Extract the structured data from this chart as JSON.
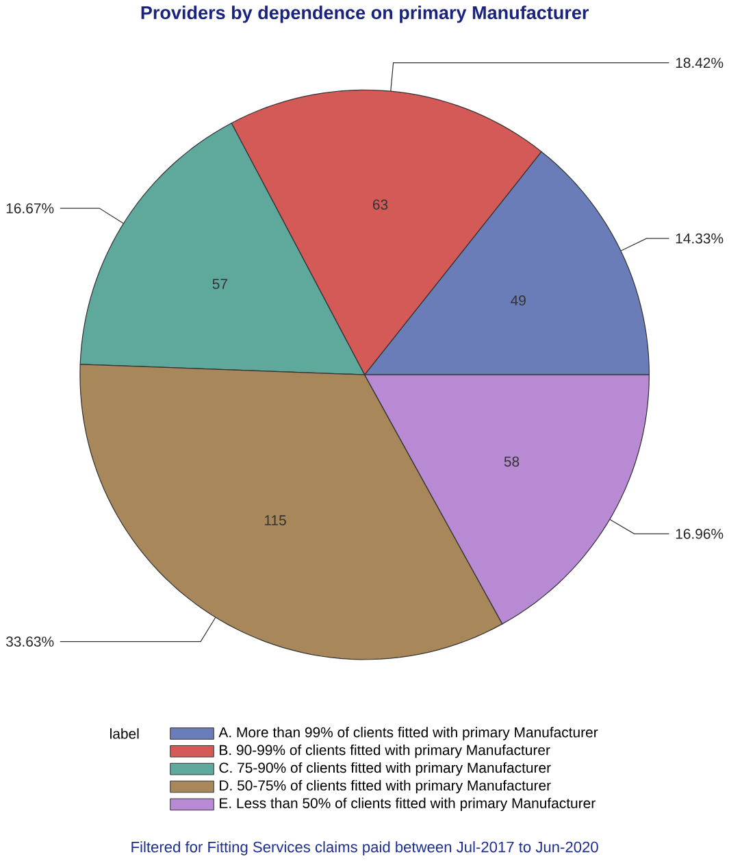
{
  "chart_data": {
    "type": "pie",
    "title": "Providers by dependence on primary Manufacturer",
    "legend_title": "label",
    "categories": [
      "A. More than 99% of clients fitted with primary Manufacturer",
      "B. 90-99% of clients fitted with primary Manufacturer",
      "C. 75-90% of clients fitted with primary Manufacturer",
      "D. 50-75% of clients fitted with primary Manufacturer",
      "E. Less than 50% of clients fitted with primary Manufacturer"
    ],
    "values": [
      49,
      63,
      57,
      115,
      58
    ],
    "colors": [
      "#6b7db8",
      "#d45a58",
      "#5fa89c",
      "#a8875b",
      "#b98ad4"
    ],
    "data_labels": true,
    "legend": "bottom",
    "annotations": [
      "14.33%",
      "18.42%",
      "16.67%",
      "33.63%",
      "16.96%",
      "Filtered for Fitting Services claims paid between Jul-2017 to Jun-2020"
    ]
  }
}
